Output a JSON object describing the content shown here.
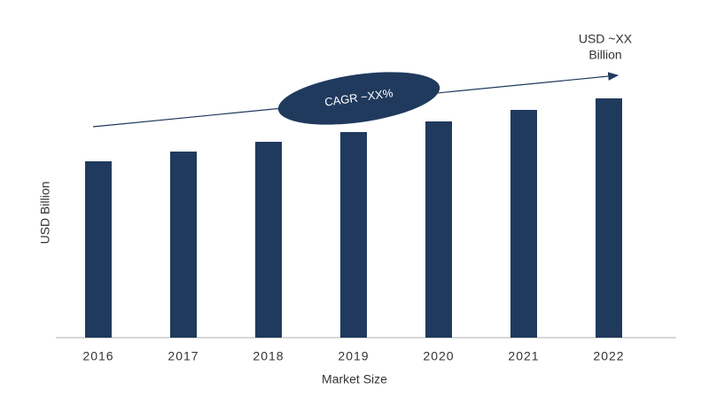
{
  "chart_data": {
    "type": "bar",
    "categories": [
      "2016",
      "2017",
      "2018",
      "2019",
      "2020",
      "2021",
      "2022"
    ],
    "values": [
      199,
      210,
      221,
      232,
      244,
      257,
      270
    ],
    "color": "#203a5e",
    "ylim": [
      0,
      340
    ],
    "x_label": "Market Size",
    "y_label": "USD Billion",
    "annotation": [
      "USD ~XX",
      "Billion"
    ],
    "cagr_label": "CAGR ~XX%"
  }
}
